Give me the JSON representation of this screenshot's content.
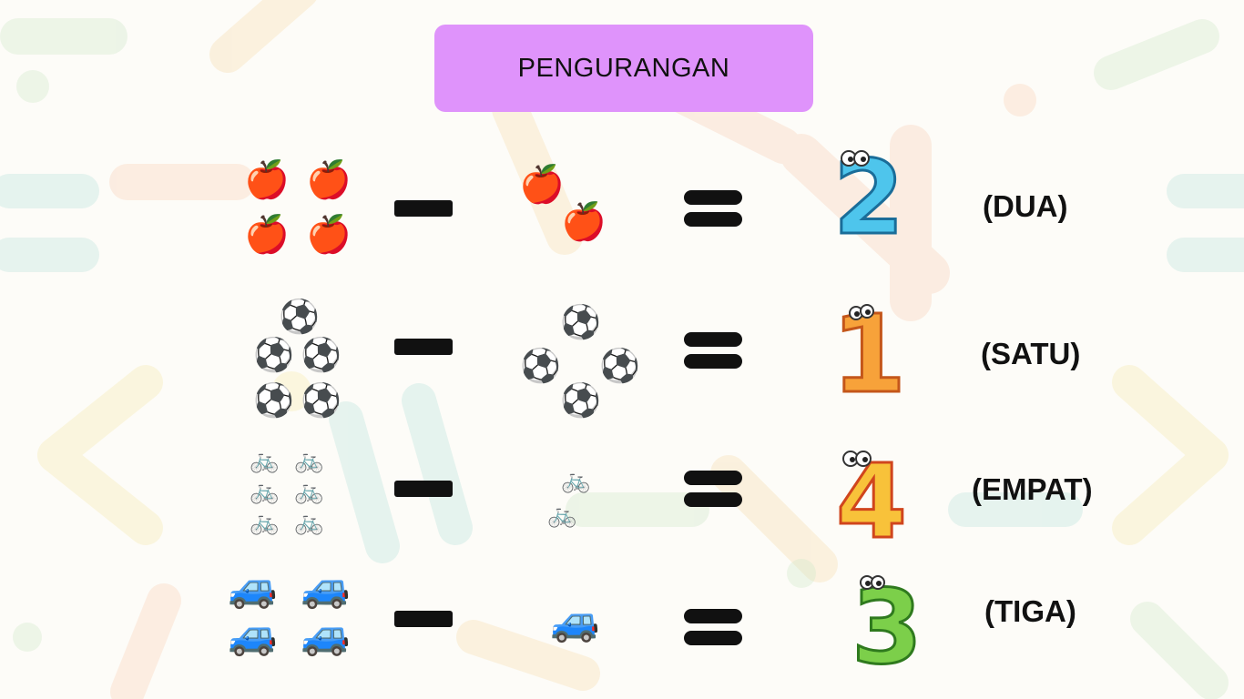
{
  "title": "PENGURANGAN",
  "rows": [
    {
      "left_count": 4,
      "right_count": 2,
      "result": "2",
      "result_word": "(DUA)",
      "item_icon": "apple-icon"
    },
    {
      "left_count": 5,
      "right_count": 4,
      "result": "1",
      "result_word": "(SATU)",
      "item_icon": "soccer-ball-icon"
    },
    {
      "left_count": 6,
      "right_count": 2,
      "result": "4",
      "result_word": "(EMPAT)",
      "item_icon": "bicycle-icon"
    },
    {
      "left_count": 4,
      "right_count": 1,
      "result": "3",
      "result_word": "(TIGA)",
      "item_icon": "car-icon"
    }
  ],
  "colors": {
    "title_bg": "#df93fb",
    "operator": "#111111"
  }
}
